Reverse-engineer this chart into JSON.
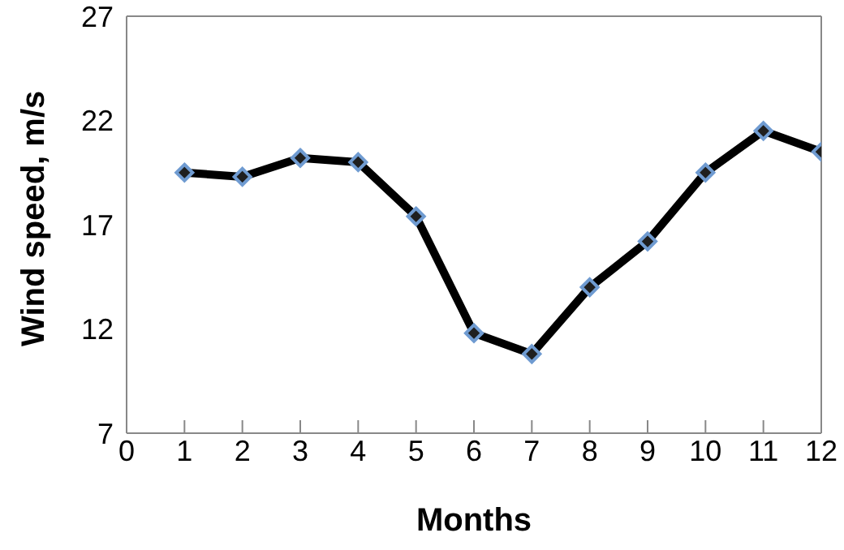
{
  "chart_data": {
    "type": "line",
    "xlabel": "Months",
    "ylabel": "Wind speed, m/s",
    "x": [
      1,
      2,
      3,
      4,
      5,
      6,
      7,
      8,
      9,
      10,
      11,
      12
    ],
    "series": [
      {
        "color": "#000000",
        "values": [
          19.5,
          19.3,
          20.2,
          20.0,
          17.4,
          11.8,
          10.8,
          14.0,
          16.2,
          19.5,
          21.5,
          20.5
        ]
      }
    ],
    "xlim": [
      0,
      12
    ],
    "xticks": [
      0,
      1,
      2,
      3,
      4,
      5,
      6,
      7,
      8,
      9,
      10,
      11,
      12
    ],
    "ylim": [
      7,
      27
    ],
    "yticks": [
      7,
      12,
      17,
      22,
      27
    ],
    "grid": false,
    "legend": false,
    "marker": "diamond",
    "line_style": "solid"
  }
}
